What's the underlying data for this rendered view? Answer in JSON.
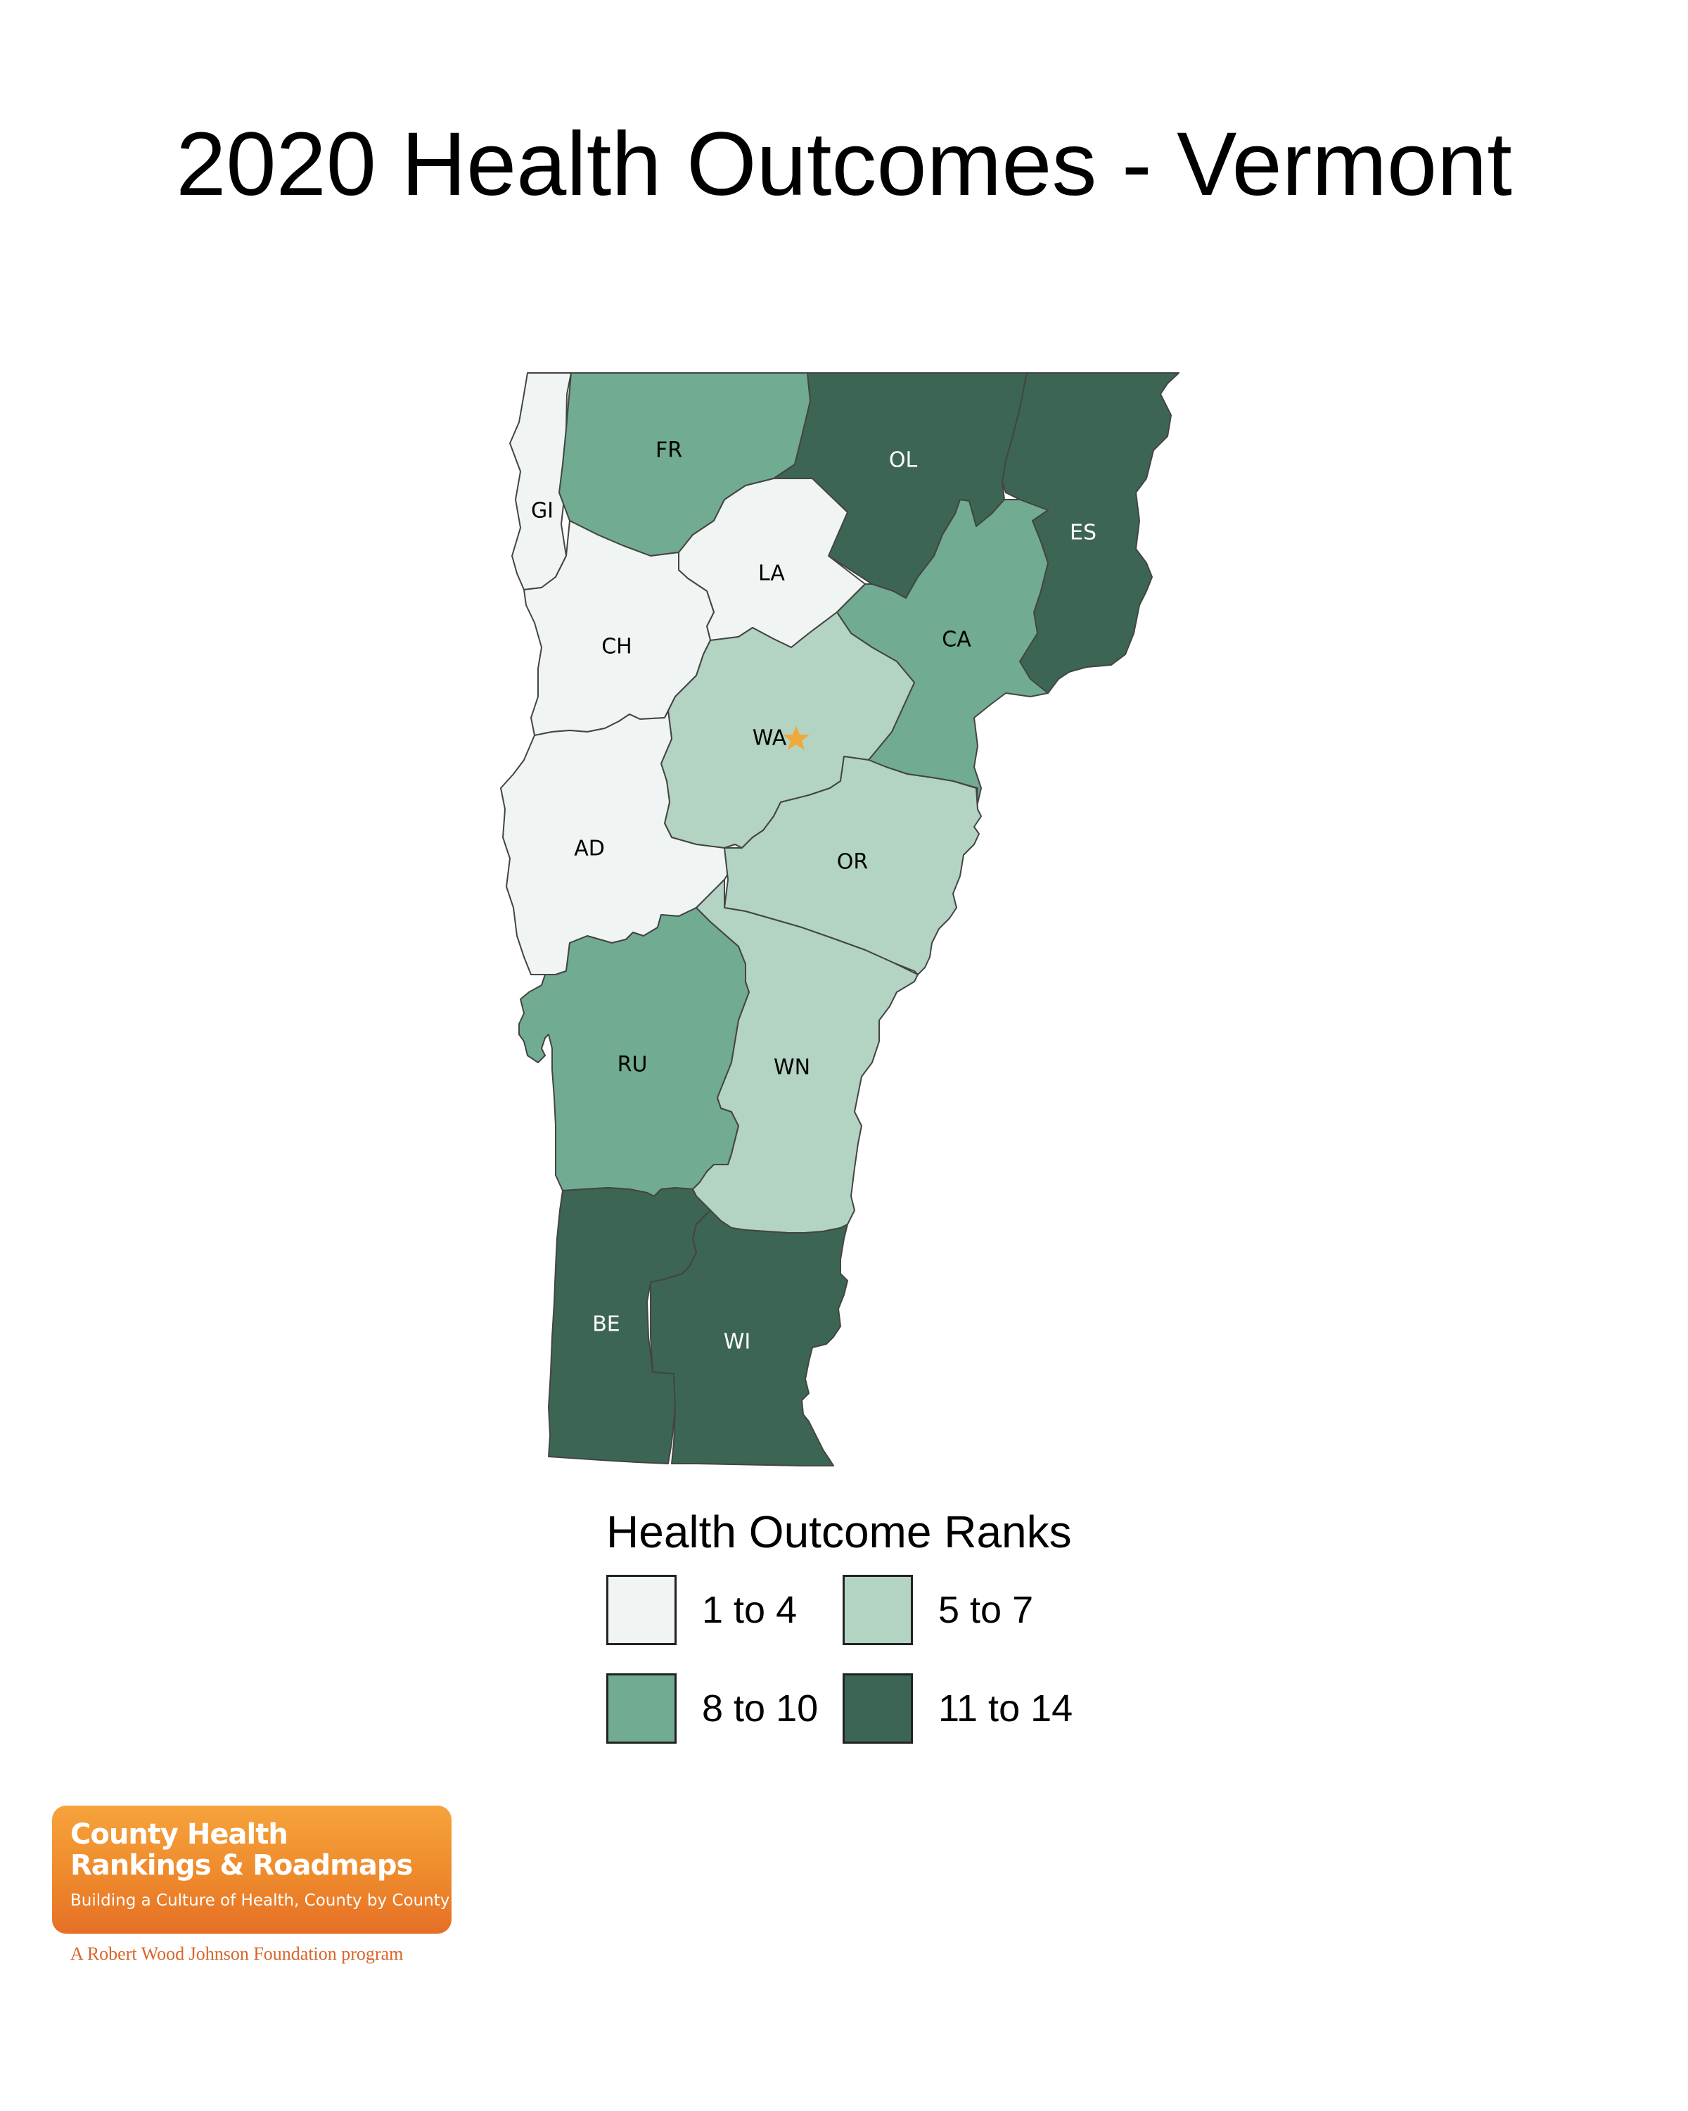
{
  "title": "2020 Health Outcomes - Vermont",
  "colors": {
    "ranks_1_4": "#f0f4f2",
    "ranks_5_7": "#b3d3c3",
    "ranks_8_10": "#71ab91",
    "ranks_11_14": "#3c6653",
    "label_dark": "#000000",
    "label_light": "#ffffff",
    "star": "#f0a93b"
  },
  "counties": [
    {
      "abbr": "GI",
      "rank_group": "1 to 4"
    },
    {
      "abbr": "FR",
      "rank_group": "8 to 10"
    },
    {
      "abbr": "OL",
      "rank_group": "11 to 14"
    },
    {
      "abbr": "ES",
      "rank_group": "11 to 14"
    },
    {
      "abbr": "LA",
      "rank_group": "1 to 4"
    },
    {
      "abbr": "CA",
      "rank_group": "8 to 10"
    },
    {
      "abbr": "CH",
      "rank_group": "1 to 4"
    },
    {
      "abbr": "WA",
      "rank_group": "5 to 7"
    },
    {
      "abbr": "AD",
      "rank_group": "1 to 4"
    },
    {
      "abbr": "OR",
      "rank_group": "5 to 7"
    },
    {
      "abbr": "RU",
      "rank_group": "8 to 10"
    },
    {
      "abbr": "WN",
      "rank_group": "5 to 7"
    },
    {
      "abbr": "BE",
      "rank_group": "11 to 14"
    },
    {
      "abbr": "WI",
      "rank_group": "11 to 14"
    }
  ],
  "legend": {
    "title": "Health Outcome Ranks",
    "items": [
      "1 to 4",
      "5 to 7",
      "8 to 10",
      "11 to 14"
    ]
  },
  "logo": {
    "line1": "County Health",
    "line2": "Rankings & Roadmaps",
    "tagline": "Building a Culture of Health, County by County",
    "program": "A Robert Wood Johnson Foundation program"
  }
}
